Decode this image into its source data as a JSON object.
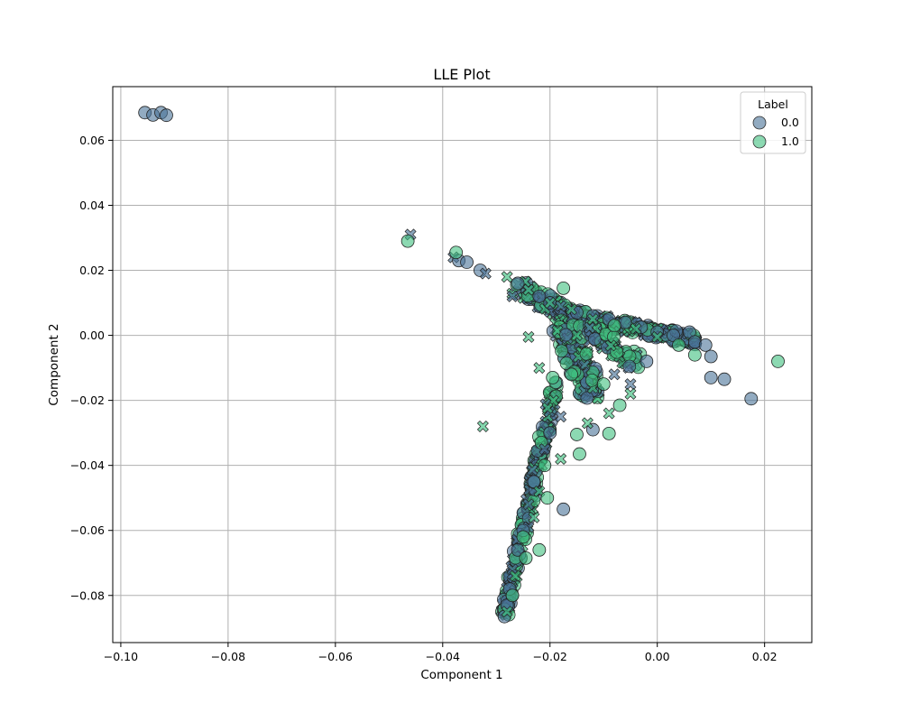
{
  "chart_data": {
    "type": "scatter",
    "title": "LLE Plot",
    "xlabel": "Component 1",
    "ylabel": "Component 2",
    "xlim": [
      -0.1015,
      0.0288
    ],
    "ylim": [
      -0.0945,
      0.0765
    ],
    "xticks": [
      -0.1,
      -0.08,
      -0.06,
      -0.04,
      -0.02,
      0.0,
      0.02
    ],
    "xtick_labels": [
      "−0.10",
      "−0.08",
      "−0.06",
      "−0.04",
      "−0.02",
      "0.00",
      "0.02"
    ],
    "yticks": [
      -0.08,
      -0.06,
      -0.04,
      -0.02,
      0.0,
      0.02,
      0.04,
      0.06
    ],
    "ytick_labels": [
      "−0.08",
      "−0.06",
      "−0.04",
      "−0.02",
      "0.00",
      "0.02",
      "0.04",
      "0.06"
    ],
    "grid": true,
    "legend": {
      "title": "Label",
      "position": "top-right",
      "entries": [
        {
          "name": "0.0",
          "color": "#4a7397"
        },
        {
          "name": "1.0",
          "color": "#3fbf7f"
        }
      ]
    },
    "series": [
      {
        "name": "0.0",
        "color": "#4a7397",
        "points": [
          {
            "x": -0.0955,
            "y": 0.0685,
            "m": "o"
          },
          {
            "x": -0.094,
            "y": 0.0678,
            "m": "o"
          },
          {
            "x": -0.0925,
            "y": 0.0685,
            "m": "o"
          },
          {
            "x": -0.0915,
            "y": 0.0677,
            "m": "o"
          },
          {
            "x": -0.046,
            "y": 0.031,
            "m": "x"
          },
          {
            "x": -0.038,
            "y": 0.024,
            "m": "x"
          },
          {
            "x": -0.037,
            "y": 0.023,
            "m": "o"
          },
          {
            "x": -0.0355,
            "y": 0.0225,
            "m": "o"
          },
          {
            "x": -0.033,
            "y": 0.02,
            "m": "o"
          },
          {
            "x": -0.032,
            "y": 0.019,
            "m": "x"
          },
          {
            "x": -0.026,
            "y": 0.016,
            "m": "o"
          },
          {
            "x": -0.024,
            "y": 0.014,
            "m": "x"
          },
          {
            "x": -0.027,
            "y": 0.012,
            "m": "x"
          },
          {
            "x": -0.022,
            "y": 0.012,
            "m": "o"
          },
          {
            "x": -0.02,
            "y": 0.01,
            "m": "o"
          },
          {
            "x": -0.018,
            "y": 0.009,
            "m": "x"
          },
          {
            "x": -0.015,
            "y": 0.007,
            "m": "o"
          },
          {
            "x": -0.012,
            "y": 0.006,
            "m": "o"
          },
          {
            "x": -0.009,
            "y": 0.005,
            "m": "o"
          },
          {
            "x": -0.006,
            "y": 0.004,
            "m": "o"
          },
          {
            "x": -0.003,
            "y": 0.0025,
            "m": "o"
          },
          {
            "x": 0.0,
            "y": 0.001,
            "m": "o"
          },
          {
            "x": 0.003,
            "y": 0.0,
            "m": "o"
          },
          {
            "x": 0.006,
            "y": 0.001,
            "m": "o"
          },
          {
            "x": 0.007,
            "y": -0.002,
            "m": "o"
          },
          {
            "x": 0.009,
            "y": -0.003,
            "m": "o"
          },
          {
            "x": 0.01,
            "y": -0.0065,
            "m": "o"
          },
          {
            "x": 0.01,
            "y": -0.013,
            "m": "o"
          },
          {
            "x": 0.0125,
            "y": -0.0135,
            "m": "o"
          },
          {
            "x": 0.0175,
            "y": -0.0195,
            "m": "o"
          },
          {
            "x": -0.002,
            "y": -0.008,
            "m": "o"
          },
          {
            "x": -0.008,
            "y": -0.012,
            "m": "x"
          },
          {
            "x": -0.005,
            "y": -0.015,
            "m": "x"
          },
          {
            "x": -0.012,
            "y": -0.029,
            "m": "o"
          },
          {
            "x": -0.018,
            "y": -0.025,
            "m": "x"
          },
          {
            "x": -0.02,
            "y": -0.03,
            "m": "o"
          },
          {
            "x": -0.021,
            "y": -0.035,
            "m": "x"
          },
          {
            "x": -0.0175,
            "y": -0.0535,
            "m": "o"
          },
          {
            "x": -0.023,
            "y": -0.045,
            "m": "o"
          },
          {
            "x": -0.024,
            "y": -0.052,
            "m": "x"
          },
          {
            "x": -0.025,
            "y": -0.06,
            "m": "o"
          },
          {
            "x": -0.026,
            "y": -0.066,
            "m": "o"
          },
          {
            "x": -0.027,
            "y": -0.072,
            "m": "x"
          },
          {
            "x": -0.0275,
            "y": -0.078,
            "m": "o"
          },
          {
            "x": -0.028,
            "y": -0.083,
            "m": "o"
          },
          {
            "x": -0.0285,
            "y": -0.0865,
            "m": "o"
          }
        ]
      },
      {
        "name": "1.0",
        "color": "#3fbf7f",
        "points": [
          {
            "x": -0.0465,
            "y": 0.029,
            "m": "o"
          },
          {
            "x": -0.0375,
            "y": 0.0255,
            "m": "o"
          },
          {
            "x": -0.028,
            "y": 0.018,
            "m": "x"
          },
          {
            "x": -0.0175,
            "y": 0.0145,
            "m": "o"
          },
          {
            "x": -0.024,
            "y": 0.014,
            "m": "x"
          },
          {
            "x": -0.02,
            "y": 0.01,
            "m": "x"
          },
          {
            "x": -0.016,
            "y": 0.008,
            "m": "x"
          },
          {
            "x": -0.012,
            "y": 0.005,
            "m": "x"
          },
          {
            "x": -0.008,
            "y": 0.003,
            "m": "o"
          },
          {
            "x": -0.004,
            "y": 0.002,
            "m": "x"
          },
          {
            "x": 0.0,
            "y": -0.0005,
            "m": "x"
          },
          {
            "x": 0.004,
            "y": -0.003,
            "m": "o"
          },
          {
            "x": 0.007,
            "y": -0.006,
            "m": "o"
          },
          {
            "x": 0.0225,
            "y": -0.008,
            "m": "o"
          },
          {
            "x": -0.024,
            "y": -0.0005,
            "m": "x"
          },
          {
            "x": -0.022,
            "y": -0.01,
            "m": "x"
          },
          {
            "x": -0.0195,
            "y": -0.013,
            "m": "o"
          },
          {
            "x": -0.016,
            "y": -0.012,
            "m": "o"
          },
          {
            "x": -0.01,
            "y": -0.015,
            "m": "o"
          },
          {
            "x": -0.005,
            "y": -0.018,
            "m": "x"
          },
          {
            "x": -0.007,
            "y": -0.0215,
            "m": "o"
          },
          {
            "x": -0.009,
            "y": -0.024,
            "m": "x"
          },
          {
            "x": -0.013,
            "y": -0.027,
            "m": "x"
          },
          {
            "x": -0.015,
            "y": -0.0305,
            "m": "o"
          },
          {
            "x": -0.009,
            "y": -0.0302,
            "m": "o"
          },
          {
            "x": -0.0325,
            "y": -0.028,
            "m": "x"
          },
          {
            "x": -0.0145,
            "y": -0.0365,
            "m": "o"
          },
          {
            "x": -0.018,
            "y": -0.038,
            "m": "x"
          },
          {
            "x": -0.021,
            "y": -0.04,
            "m": "o"
          },
          {
            "x": -0.022,
            "y": -0.048,
            "m": "x"
          },
          {
            "x": -0.0205,
            "y": -0.05,
            "m": "o"
          },
          {
            "x": -0.023,
            "y": -0.056,
            "m": "x"
          },
          {
            "x": -0.025,
            "y": -0.062,
            "m": "o"
          },
          {
            "x": -0.022,
            "y": -0.066,
            "m": "o"
          },
          {
            "x": -0.0245,
            "y": -0.0685,
            "m": "o"
          },
          {
            "x": -0.0265,
            "y": -0.074,
            "m": "x"
          },
          {
            "x": -0.027,
            "y": -0.08,
            "m": "o"
          },
          {
            "x": -0.028,
            "y": -0.085,
            "m": "x"
          }
        ]
      }
    ]
  }
}
